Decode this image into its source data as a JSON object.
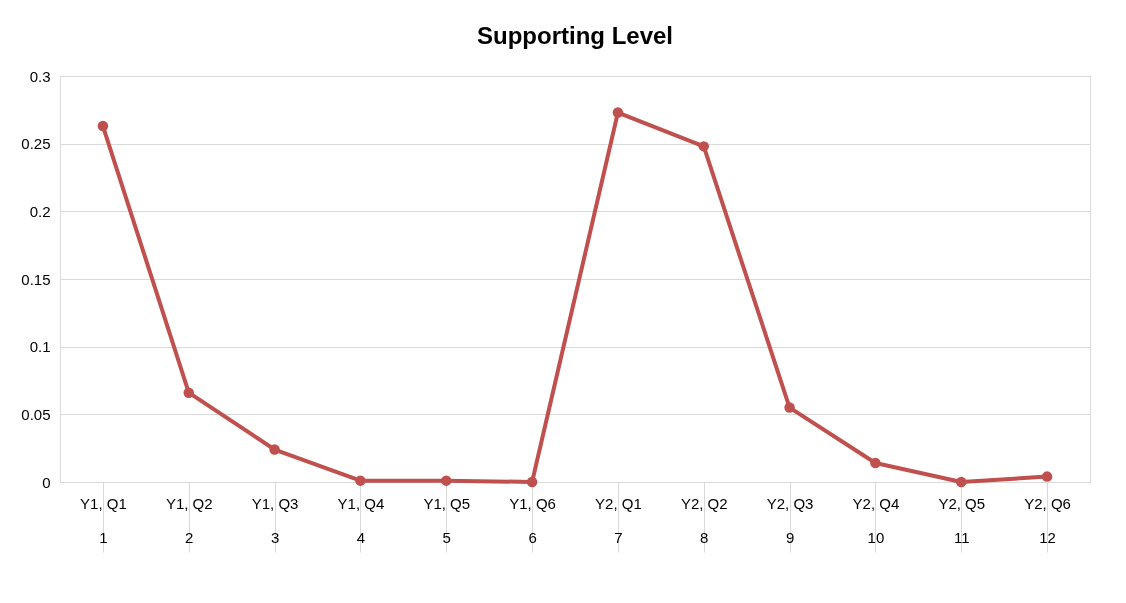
{
  "chart_data": {
    "type": "line",
    "title": "Supporting Level",
    "categories": [
      "Y1, Q1\n1",
      "Y1, Q2\n2",
      "Y1, Q3\n3",
      "Y1, Q4\n4",
      "Y1, Q5\n5",
      "Y1, Q6\n6",
      "Y2, Q1\n7",
      "Y2, Q2\n8",
      "Y2, Q3\n9",
      "Y2, Q4\n10",
      "Y2, Q5\n11",
      "Y2, Q6\n12"
    ],
    "series": [
      {
        "color": "#c0504d",
        "values": [
          0.263,
          0.066,
          0.024,
          0.001,
          0.001,
          0,
          0.273,
          0.248,
          0.055,
          0.014,
          0,
          0.004
        ]
      }
    ],
    "ylim": [
      0,
      0.3
    ],
    "yticks": [
      0,
      0.05,
      0.1,
      0.15,
      0.2,
      0.25,
      0.3
    ],
    "grid": "y",
    "marker": "circle",
    "line_style": "solid"
  }
}
